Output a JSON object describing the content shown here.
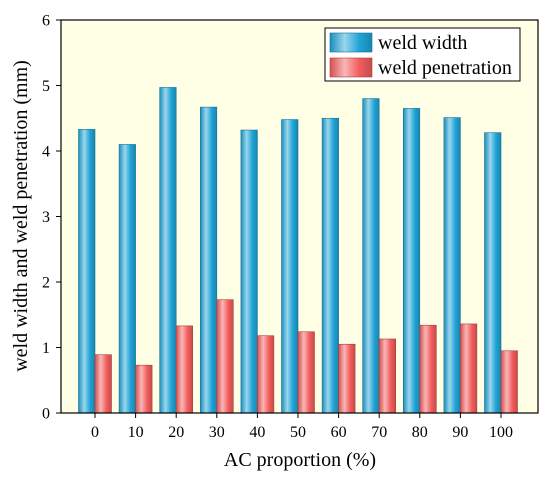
{
  "chart_data": {
    "type": "bar",
    "categories": [
      "0",
      "10",
      "20",
      "30",
      "40",
      "50",
      "60",
      "70",
      "80",
      "90",
      "100"
    ],
    "series": [
      {
        "name": "weld width",
        "color": "#1FA3D6",
        "values": [
          4.33,
          4.1,
          4.97,
          4.67,
          4.32,
          4.48,
          4.5,
          4.8,
          4.65,
          4.51,
          4.28
        ]
      },
      {
        "name": "weld penetration",
        "color": "#F25C5C",
        "values": [
          0.89,
          0.73,
          1.33,
          1.73,
          1.18,
          1.24,
          1.05,
          1.13,
          1.34,
          1.36,
          0.95
        ]
      }
    ],
    "xlabel": "AC proportion (%)",
    "ylabel": "weld width and weld penetration (mm)",
    "ylim": [
      0,
      6
    ],
    "yticks": [
      0,
      1,
      2,
      3,
      4,
      5,
      6
    ],
    "legend": "top-right",
    "grid": false
  },
  "colors": {
    "plot_background": "#FFFFE6",
    "axis": "#000000",
    "legend_background": "#FFFFFF"
  }
}
